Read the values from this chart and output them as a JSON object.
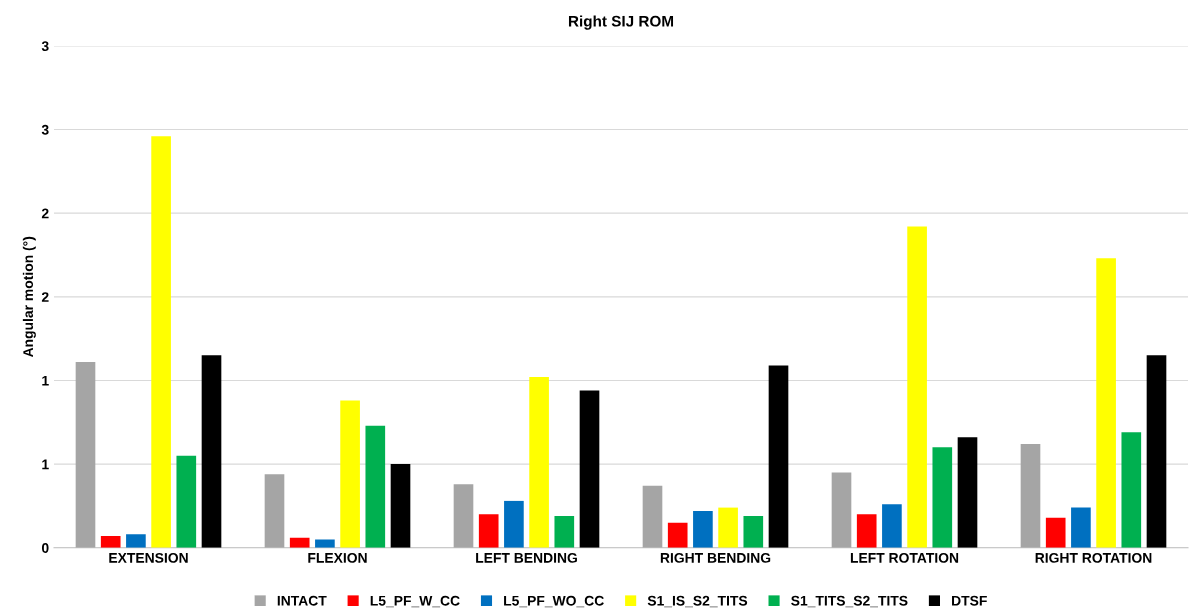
{
  "chart_data": {
    "type": "bar",
    "title": "Right SIJ ROM",
    "ylabel": "Angular motion (°)",
    "categories": [
      "EXTENSION",
      "FLEXION",
      "LEFT BENDING",
      "RIGHT BENDING",
      "LEFT ROTATION",
      "RIGHT ROTATION"
    ],
    "series": [
      {
        "name": "INTACT",
        "color": "#a5a5a5",
        "values": [
          1.11,
          0.44,
          0.38,
          0.37,
          0.45,
          0.62
        ]
      },
      {
        "name": "L5_PF_W_CC",
        "color": "#ff0000",
        "values": [
          0.07,
          0.06,
          0.2,
          0.15,
          0.2,
          0.18
        ]
      },
      {
        "name": "L5_PF_WO_CC",
        "color": "#0070c0",
        "values": [
          0.08,
          0.05,
          0.28,
          0.22,
          0.26,
          0.24
        ]
      },
      {
        "name": "S1_IS_S2_TITS",
        "color": "#ffff00",
        "values": [
          2.46,
          0.88,
          1.02,
          0.24,
          1.92,
          1.73
        ]
      },
      {
        "name": "S1_TITS_S2_TITS",
        "color": "#00b050",
        "values": [
          0.55,
          0.73,
          0.19,
          0.19,
          0.6,
          0.69
        ]
      },
      {
        "name": "DTSF",
        "color": "#000000",
        "values": [
          1.15,
          0.5,
          0.94,
          1.09,
          0.66,
          1.15
        ]
      }
    ],
    "ylim": [
      0,
      3
    ],
    "yticks": [
      0,
      {
        "value": 0.5,
        "label": "1"
      },
      1,
      {
        "value": 1.5,
        "label": "2"
      },
      2,
      {
        "value": 2.5,
        "label": "3"
      },
      3
    ],
    "grid": "y",
    "legend": "bottom"
  }
}
